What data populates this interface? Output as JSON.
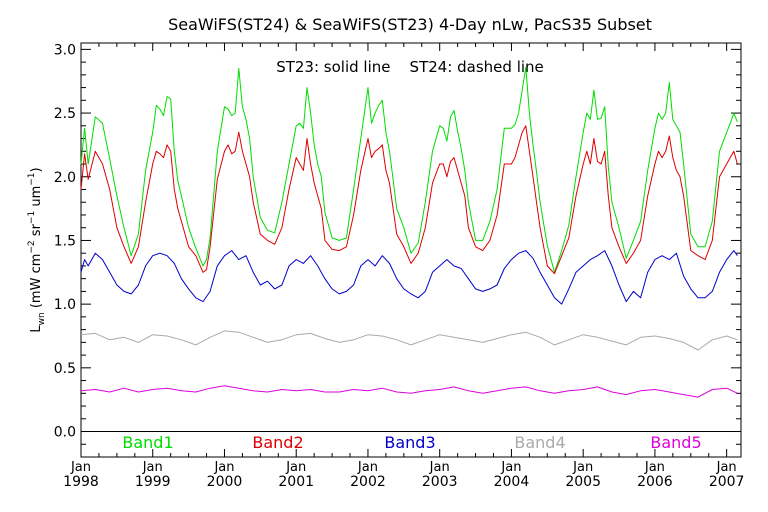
{
  "chart_data": {
    "type": "line",
    "title": "SeaWiFS(ST24) & SeaWiFS(ST23) 4-Day nLw, PacS35 Subset",
    "annotation": "ST23: solid line    ST24: dashed line",
    "ylabel": "L_wn (mW cm^-2 sr^-1 um^-1)",
    "ylim": [
      -0.2,
      3.05
    ],
    "xlim": [
      1998.0,
      2007.2
    ],
    "yticks": [
      "0.0",
      "0.5",
      "1.0",
      "1.5",
      "2.0",
      "2.5",
      "3.0"
    ],
    "xtick_month": "Jan",
    "xticks": [
      "1998",
      "1999",
      "2000",
      "2001",
      "2002",
      "2003",
      "2004",
      "2005",
      "2006",
      "2007"
    ],
    "grid": false,
    "legend_position": "bottom",
    "series": [
      {
        "name": "Band1",
        "color": "#00dd00",
        "x": [
          1998.0,
          1998.05,
          1998.1,
          1998.2,
          1998.3,
          1998.4,
          1998.5,
          1998.6,
          1998.7,
          1998.8,
          1998.9,
          1999.0,
          1999.05,
          1999.1,
          1999.15,
          1999.2,
          1999.25,
          1999.3,
          1999.35,
          1999.4,
          1999.5,
          1999.6,
          1999.7,
          1999.75,
          1999.8,
          1999.9,
          2000.0,
          2000.05,
          2000.1,
          2000.15,
          2000.2,
          2000.25,
          2000.3,
          2000.35,
          2000.4,
          2000.5,
          2000.6,
          2000.7,
          2000.8,
          2000.9,
          2001.0,
          2001.05,
          2001.1,
          2001.15,
          2001.2,
          2001.25,
          2001.3,
          2001.35,
          2001.4,
          2001.5,
          2001.6,
          2001.7,
          2001.8,
          2001.9,
          2002.0,
          2002.05,
          2002.1,
          2002.15,
          2002.2,
          2002.25,
          2002.3,
          2002.35,
          2002.4,
          2002.5,
          2002.6,
          2002.7,
          2002.8,
          2002.9,
          2003.0,
          2003.05,
          2003.1,
          2003.15,
          2003.2,
          2003.25,
          2003.3,
          2003.35,
          2003.4,
          2003.5,
          2003.6,
          2003.7,
          2003.8,
          2003.9,
          2004.0,
          2004.05,
          2004.1,
          2004.15,
          2004.2,
          2004.25,
          2004.3,
          2004.35,
          2004.4,
          2004.5,
          2004.6,
          2004.7,
          2004.8,
          2004.9,
          2005.0,
          2005.05,
          2005.1,
          2005.15,
          2005.2,
          2005.25,
          2005.3,
          2005.35,
          2005.4,
          2005.5,
          2005.6,
          2005.7,
          2005.8,
          2005.9,
          2006.0,
          2006.05,
          2006.1,
          2006.15,
          2006.2,
          2006.25,
          2006.3,
          2006.35,
          2006.4,
          2006.5,
          2006.6,
          2006.7,
          2006.8,
          2006.9,
          2007.0,
          2007.05,
          2007.1,
          2007.15
        ],
        "y": [
          2.1,
          2.38,
          2.1,
          2.47,
          2.42,
          2.14,
          1.85,
          1.6,
          1.38,
          1.55,
          2.05,
          2.35,
          2.56,
          2.53,
          2.48,
          2.63,
          2.61,
          2.2,
          1.97,
          1.85,
          1.6,
          1.44,
          1.3,
          1.35,
          1.52,
          2.2,
          2.55,
          2.53,
          2.48,
          2.5,
          2.85,
          2.55,
          2.45,
          2.3,
          2.0,
          1.68,
          1.58,
          1.56,
          1.8,
          2.1,
          2.4,
          2.42,
          2.38,
          2.7,
          2.5,
          2.25,
          2.1,
          2.0,
          1.72,
          1.52,
          1.5,
          1.52,
          1.9,
          2.3,
          2.7,
          2.42,
          2.5,
          2.56,
          2.6,
          2.35,
          2.2,
          1.98,
          1.75,
          1.6,
          1.4,
          1.48,
          1.8,
          2.2,
          2.4,
          2.38,
          2.28,
          2.47,
          2.52,
          2.36,
          2.22,
          2.05,
          1.8,
          1.5,
          1.5,
          1.65,
          1.9,
          2.38,
          2.38,
          2.41,
          2.5,
          2.68,
          2.86,
          2.5,
          2.25,
          2.04,
          1.8,
          1.46,
          1.25,
          1.42,
          1.62,
          2.0,
          2.35,
          2.5,
          2.45,
          2.68,
          2.45,
          2.46,
          2.55,
          2.08,
          1.8,
          1.6,
          1.36,
          1.5,
          1.65,
          2.05,
          2.38,
          2.5,
          2.45,
          2.5,
          2.74,
          2.45,
          2.4,
          2.35,
          2.1,
          1.55,
          1.45,
          1.45,
          1.65,
          2.2,
          2.35,
          2.42,
          2.5,
          2.43
        ]
      },
      {
        "name": "Band2",
        "color": "#dd0000",
        "x": [
          1998.0,
          1998.05,
          1998.1,
          1998.2,
          1998.3,
          1998.4,
          1998.5,
          1998.6,
          1998.7,
          1998.8,
          1998.9,
          1999.0,
          1999.05,
          1999.1,
          1999.15,
          1999.2,
          1999.25,
          1999.3,
          1999.35,
          1999.4,
          1999.5,
          1999.6,
          1999.7,
          1999.75,
          1999.8,
          1999.9,
          2000.0,
          2000.05,
          2000.1,
          2000.15,
          2000.2,
          2000.25,
          2000.3,
          2000.35,
          2000.4,
          2000.5,
          2000.6,
          2000.7,
          2000.8,
          2000.9,
          2001.0,
          2001.05,
          2001.1,
          2001.15,
          2001.2,
          2001.25,
          2001.3,
          2001.35,
          2001.4,
          2001.5,
          2001.6,
          2001.7,
          2001.8,
          2001.9,
          2002.0,
          2002.05,
          2002.1,
          2002.15,
          2002.2,
          2002.25,
          2002.3,
          2002.35,
          2002.4,
          2002.5,
          2002.6,
          2002.7,
          2002.8,
          2002.9,
          2003.0,
          2003.05,
          2003.1,
          2003.15,
          2003.2,
          2003.25,
          2003.3,
          2003.35,
          2003.4,
          2003.5,
          2003.6,
          2003.7,
          2003.8,
          2003.9,
          2004.0,
          2004.05,
          2004.1,
          2004.15,
          2004.2,
          2004.25,
          2004.3,
          2004.35,
          2004.4,
          2004.5,
          2004.6,
          2004.7,
          2004.8,
          2004.9,
          2005.0,
          2005.05,
          2005.1,
          2005.15,
          2005.2,
          2005.25,
          2005.3,
          2005.35,
          2005.4,
          2005.5,
          2005.6,
          2005.7,
          2005.8,
          2005.9,
          2006.0,
          2006.05,
          2006.1,
          2006.15,
          2006.2,
          2006.25,
          2006.3,
          2006.35,
          2006.4,
          2006.5,
          2006.6,
          2006.7,
          2006.8,
          2006.9,
          2007.0,
          2007.05,
          2007.1,
          2007.15
        ],
        "y": [
          1.9,
          2.18,
          1.98,
          2.2,
          2.1,
          1.9,
          1.6,
          1.45,
          1.32,
          1.45,
          1.8,
          2.1,
          2.2,
          2.18,
          2.15,
          2.25,
          2.2,
          1.9,
          1.75,
          1.65,
          1.45,
          1.38,
          1.25,
          1.27,
          1.45,
          1.98,
          2.2,
          2.25,
          2.18,
          2.2,
          2.35,
          2.2,
          2.1,
          2.0,
          1.8,
          1.55,
          1.5,
          1.47,
          1.6,
          1.9,
          2.15,
          2.1,
          2.05,
          2.3,
          2.1,
          1.95,
          1.85,
          1.75,
          1.5,
          1.43,
          1.42,
          1.45,
          1.7,
          2.05,
          2.3,
          2.15,
          2.2,
          2.22,
          2.25,
          2.05,
          1.95,
          1.75,
          1.55,
          1.45,
          1.32,
          1.4,
          1.6,
          1.95,
          2.1,
          2.1,
          2.0,
          2.12,
          2.15,
          2.05,
          1.95,
          1.85,
          1.6,
          1.45,
          1.42,
          1.5,
          1.7,
          2.1,
          2.1,
          2.15,
          2.25,
          2.35,
          2.4,
          2.2,
          2.0,
          1.8,
          1.6,
          1.3,
          1.24,
          1.38,
          1.52,
          1.85,
          2.1,
          2.2,
          2.1,
          2.3,
          2.12,
          2.1,
          2.2,
          1.85,
          1.6,
          1.45,
          1.32,
          1.4,
          1.5,
          1.85,
          2.1,
          2.2,
          2.15,
          2.2,
          2.32,
          2.15,
          2.05,
          2.0,
          1.85,
          1.42,
          1.38,
          1.35,
          1.5,
          2.0,
          2.1,
          2.15,
          2.2,
          2.1
        ]
      },
      {
        "name": "Band3",
        "color": "#0000cc",
        "x": [
          1998.0,
          1998.05,
          1998.1,
          1998.2,
          1998.3,
          1998.4,
          1998.5,
          1998.6,
          1998.7,
          1998.8,
          1998.9,
          1999.0,
          1999.1,
          1999.2,
          1999.3,
          1999.4,
          1999.5,
          1999.6,
          1999.7,
          1999.8,
          1999.9,
          2000.0,
          2000.1,
          2000.2,
          2000.3,
          2000.4,
          2000.5,
          2000.6,
          2000.7,
          2000.8,
          2000.9,
          2001.0,
          2001.1,
          2001.2,
          2001.3,
          2001.4,
          2001.5,
          2001.6,
          2001.7,
          2001.8,
          2001.9,
          2002.0,
          2002.1,
          2002.2,
          2002.3,
          2002.4,
          2002.5,
          2002.6,
          2002.7,
          2002.8,
          2002.9,
          2003.0,
          2003.1,
          2003.2,
          2003.3,
          2003.4,
          2003.5,
          2003.6,
          2003.7,
          2003.8,
          2003.9,
          2004.0,
          2004.1,
          2004.2,
          2004.3,
          2004.4,
          2004.5,
          2004.6,
          2004.7,
          2004.8,
          2004.9,
          2005.0,
          2005.1,
          2005.2,
          2005.3,
          2005.4,
          2005.5,
          2005.6,
          2005.7,
          2005.8,
          2005.9,
          2006.0,
          2006.1,
          2006.2,
          2006.3,
          2006.4,
          2006.5,
          2006.6,
          2006.7,
          2006.8,
          2006.9,
          2007.0,
          2007.1,
          2007.15
        ],
        "y": [
          1.25,
          1.35,
          1.3,
          1.4,
          1.35,
          1.25,
          1.15,
          1.1,
          1.08,
          1.15,
          1.3,
          1.38,
          1.4,
          1.38,
          1.32,
          1.2,
          1.12,
          1.05,
          1.02,
          1.1,
          1.3,
          1.38,
          1.42,
          1.35,
          1.38,
          1.25,
          1.15,
          1.18,
          1.12,
          1.15,
          1.3,
          1.35,
          1.32,
          1.38,
          1.3,
          1.2,
          1.12,
          1.08,
          1.1,
          1.15,
          1.3,
          1.35,
          1.3,
          1.38,
          1.32,
          1.2,
          1.12,
          1.08,
          1.05,
          1.1,
          1.25,
          1.3,
          1.35,
          1.3,
          1.28,
          1.2,
          1.12,
          1.1,
          1.12,
          1.15,
          1.28,
          1.35,
          1.4,
          1.42,
          1.36,
          1.25,
          1.15,
          1.05,
          1.0,
          1.12,
          1.25,
          1.3,
          1.35,
          1.38,
          1.42,
          1.3,
          1.15,
          1.02,
          1.1,
          1.05,
          1.25,
          1.35,
          1.38,
          1.35,
          1.4,
          1.22,
          1.12,
          1.05,
          1.05,
          1.1,
          1.25,
          1.35,
          1.42,
          1.38
        ]
      },
      {
        "name": "Band4",
        "color": "#aaaaaa",
        "x": [
          1998.0,
          1998.2,
          1998.4,
          1998.6,
          1998.8,
          1999.0,
          1999.2,
          1999.4,
          1999.6,
          1999.8,
          2000.0,
          2000.2,
          2000.4,
          2000.6,
          2000.8,
          2001.0,
          2001.2,
          2001.4,
          2001.6,
          2001.8,
          2002.0,
          2002.2,
          2002.4,
          2002.6,
          2002.8,
          2003.0,
          2003.2,
          2003.4,
          2003.6,
          2003.8,
          2004.0,
          2004.2,
          2004.4,
          2004.6,
          2004.8,
          2005.0,
          2005.2,
          2005.4,
          2005.6,
          2005.8,
          2006.0,
          2006.2,
          2006.4,
          2006.6,
          2006.8,
          2007.0,
          2007.15
        ],
        "y": [
          0.76,
          0.77,
          0.72,
          0.74,
          0.7,
          0.76,
          0.75,
          0.72,
          0.68,
          0.74,
          0.79,
          0.78,
          0.74,
          0.7,
          0.72,
          0.76,
          0.77,
          0.73,
          0.7,
          0.72,
          0.76,
          0.75,
          0.72,
          0.68,
          0.72,
          0.76,
          0.74,
          0.72,
          0.7,
          0.73,
          0.76,
          0.78,
          0.74,
          0.68,
          0.72,
          0.76,
          0.74,
          0.71,
          0.68,
          0.74,
          0.75,
          0.73,
          0.7,
          0.64,
          0.72,
          0.75,
          0.72
        ]
      },
      {
        "name": "Band5",
        "color": "#dd00dd",
        "x": [
          1998.0,
          1998.2,
          1998.4,
          1998.6,
          1998.8,
          1999.0,
          1999.2,
          1999.4,
          1999.6,
          1999.8,
          2000.0,
          2000.2,
          2000.4,
          2000.6,
          2000.8,
          2001.0,
          2001.2,
          2001.4,
          2001.6,
          2001.8,
          2002.0,
          2002.2,
          2002.4,
          2002.6,
          2002.8,
          2003.0,
          2003.2,
          2003.4,
          2003.6,
          2003.8,
          2004.0,
          2004.2,
          2004.4,
          2004.6,
          2004.8,
          2005.0,
          2005.2,
          2005.4,
          2005.6,
          2005.8,
          2006.0,
          2006.2,
          2006.4,
          2006.6,
          2006.8,
          2007.0,
          2007.15
        ],
        "y": [
          0.32,
          0.33,
          0.31,
          0.34,
          0.31,
          0.33,
          0.34,
          0.32,
          0.31,
          0.34,
          0.36,
          0.34,
          0.32,
          0.31,
          0.33,
          0.32,
          0.33,
          0.31,
          0.31,
          0.33,
          0.32,
          0.34,
          0.31,
          0.3,
          0.32,
          0.33,
          0.35,
          0.32,
          0.3,
          0.32,
          0.34,
          0.35,
          0.32,
          0.3,
          0.32,
          0.33,
          0.35,
          0.31,
          0.29,
          0.32,
          0.33,
          0.31,
          0.29,
          0.27,
          0.33,
          0.34,
          0.3
        ]
      }
    ]
  }
}
